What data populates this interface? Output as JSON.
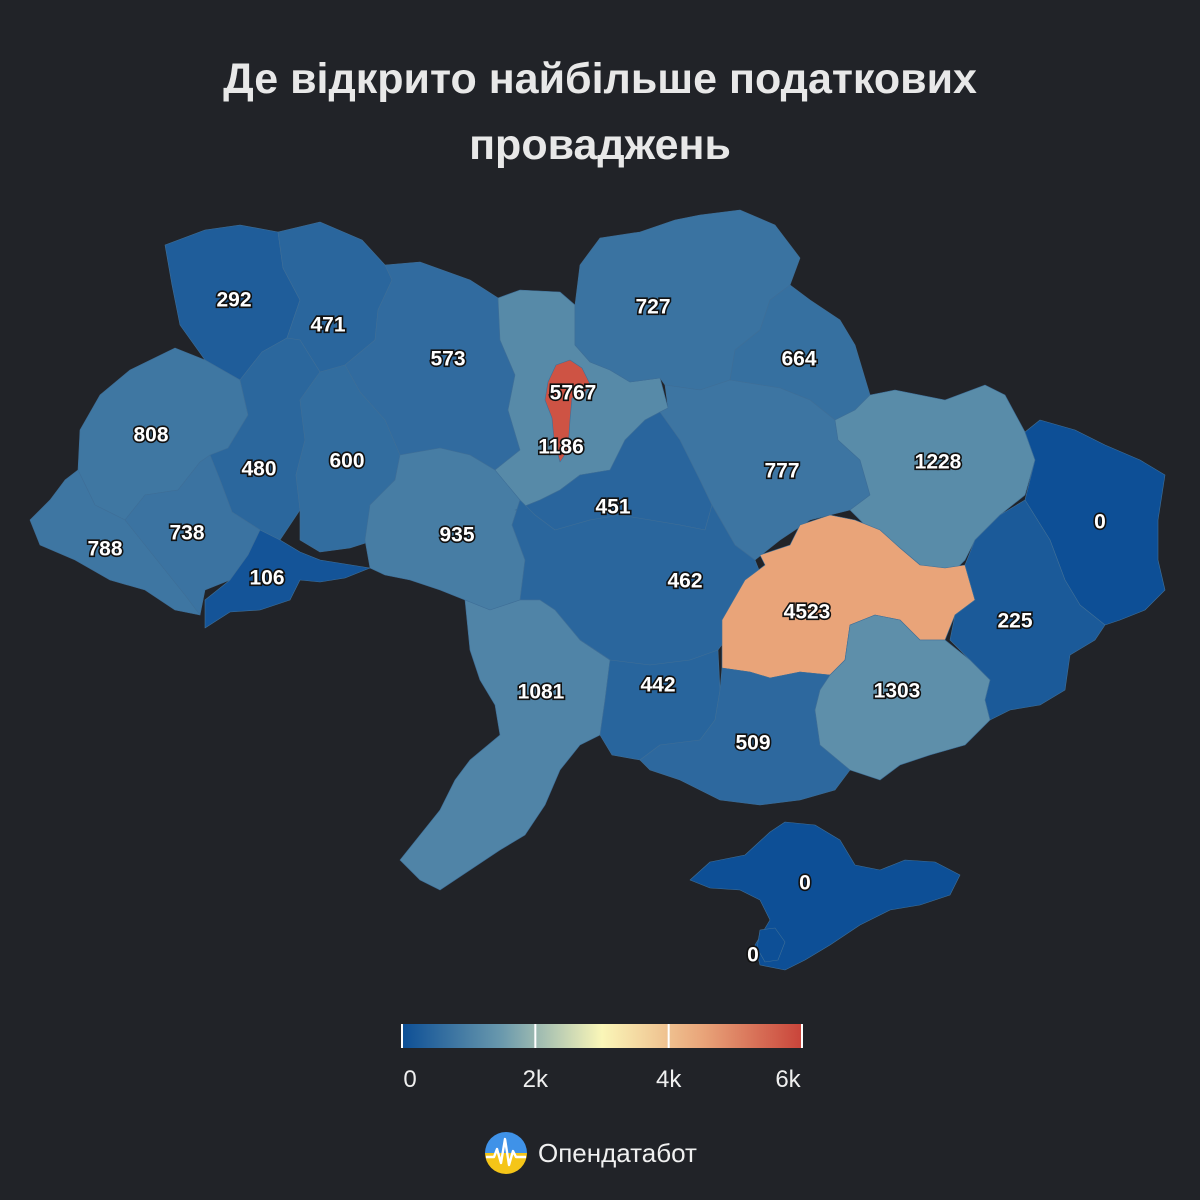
{
  "title": [
    "Де відкрито найбільше податкових",
    "проваджень"
  ],
  "colors": {
    "background": "#212328",
    "scale": [
      "#0d4f96",
      "#6a99ad",
      "#faf6b8",
      "#e9a57a",
      "#c9443a"
    ]
  },
  "legend": {
    "min": 0,
    "max": 6000,
    "ticks": [
      {
        "value": 0,
        "label": "0"
      },
      {
        "value": 2000,
        "label": "2k"
      },
      {
        "value": 4000,
        "label": "4k"
      },
      {
        "value": 6000,
        "label": "6k"
      }
    ]
  },
  "regions": [
    {
      "name": "Volyn",
      "value": 292,
      "label": "292"
    },
    {
      "name": "Rivne",
      "value": 471,
      "label": "471"
    },
    {
      "name": "Zhytomyr",
      "value": 573,
      "label": "573"
    },
    {
      "name": "Kyiv city",
      "value": 5767,
      "label": "5767"
    },
    {
      "name": "Kyiv oblast",
      "value": 1186,
      "label": "1186"
    },
    {
      "name": "Chernihiv",
      "value": 727,
      "label": "727"
    },
    {
      "name": "Sumy",
      "value": 664,
      "label": "664"
    },
    {
      "name": "Lviv",
      "value": 808,
      "label": "808"
    },
    {
      "name": "Ternopil",
      "value": 480,
      "label": "480"
    },
    {
      "name": "Khmelnytskyi",
      "value": 600,
      "label": "600"
    },
    {
      "name": "Vinnytsia",
      "value": 935,
      "label": "935"
    },
    {
      "name": "Cherkasy",
      "value": 451,
      "label": "451"
    },
    {
      "name": "Poltava",
      "value": 777,
      "label": "777"
    },
    {
      "name": "Kharkiv",
      "value": 1228,
      "label": "1228"
    },
    {
      "name": "Luhansk",
      "value": 0,
      "label": "0"
    },
    {
      "name": "Zakarpattia",
      "value": 788,
      "label": "788"
    },
    {
      "name": "Ivano-Frankivsk",
      "value": 738,
      "label": "738"
    },
    {
      "name": "Chernivtsi",
      "value": 106,
      "label": "106"
    },
    {
      "name": "Kirovohrad",
      "value": 462,
      "label": "462"
    },
    {
      "name": "Dnipropetrovsk",
      "value": 4523,
      "label": "4523"
    },
    {
      "name": "Donetsk",
      "value": 225,
      "label": "225"
    },
    {
      "name": "Odesa",
      "value": 1081,
      "label": "1081"
    },
    {
      "name": "Mykolaiv",
      "value": 442,
      "label": "442"
    },
    {
      "name": "Kherson",
      "value": 509,
      "label": "509"
    },
    {
      "name": "Zaporizhzhia",
      "value": 1303,
      "label": "1303"
    },
    {
      "name": "Crimea",
      "value": 0,
      "label": "0"
    },
    {
      "name": "Sevastopol",
      "value": 0,
      "label": "0"
    }
  ],
  "brand": {
    "name": "Опендатабот",
    "icon": "opendatabot-logo-icon"
  }
}
